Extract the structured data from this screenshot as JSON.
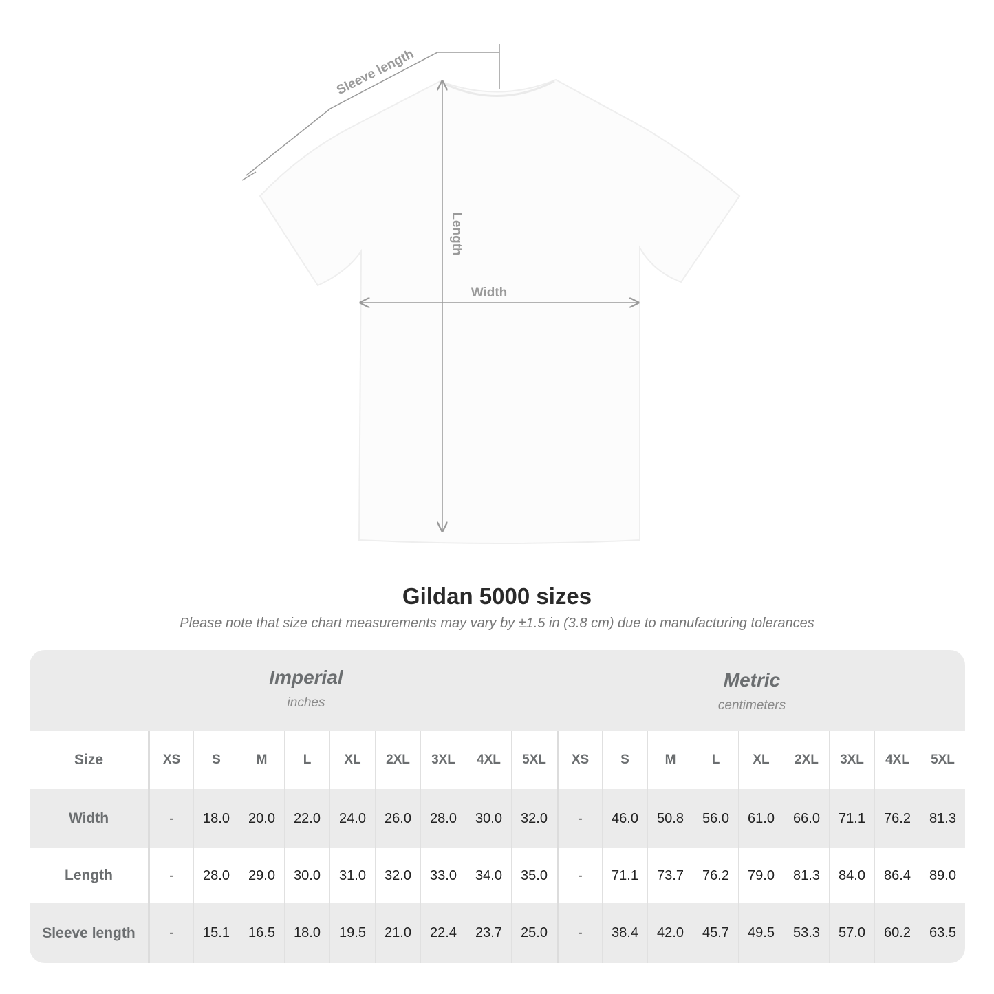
{
  "diagram": {
    "labels": {
      "sleeve": "Sleeve length",
      "length": "Length",
      "width": "Width"
    }
  },
  "title": "Gildan 5000 sizes",
  "subtitle": "Please note that size chart measurements may vary by ±1.5 in (3.8 cm) due to manufacturing tolerances",
  "systems": [
    {
      "name": "Imperial",
      "unit": "inches"
    },
    {
      "name": "Metric",
      "unit": "centimeters"
    }
  ],
  "size_label": "Size",
  "sizes": [
    "XS",
    "S",
    "M",
    "L",
    "XL",
    "2XL",
    "3XL",
    "4XL",
    "5XL"
  ],
  "rows": [
    {
      "label": "Width",
      "imperial": [
        "-",
        "18.0",
        "20.0",
        "22.0",
        "24.0",
        "26.0",
        "28.0",
        "30.0",
        "32.0"
      ],
      "metric": [
        "-",
        "46.0",
        "50.8",
        "56.0",
        "61.0",
        "66.0",
        "71.1",
        "76.2",
        "81.3"
      ]
    },
    {
      "label": "Length",
      "imperial": [
        "-",
        "28.0",
        "29.0",
        "30.0",
        "31.0",
        "32.0",
        "33.0",
        "34.0",
        "35.0"
      ],
      "metric": [
        "-",
        "71.1",
        "73.7",
        "76.2",
        "79.0",
        "81.3",
        "84.0",
        "86.4",
        "89.0"
      ]
    },
    {
      "label": "Sleeve length",
      "imperial": [
        "-",
        "15.1",
        "16.5",
        "18.0",
        "19.5",
        "21.0",
        "22.4",
        "23.7",
        "25.0"
      ],
      "metric": [
        "-",
        "38.4",
        "42.0",
        "45.7",
        "49.5",
        "53.3",
        "57.0",
        "60.2",
        "63.5"
      ]
    }
  ],
  "colors": {
    "panel": "#ebebeb",
    "label": "#6b6e70",
    "measure": "#9a9a9a"
  }
}
